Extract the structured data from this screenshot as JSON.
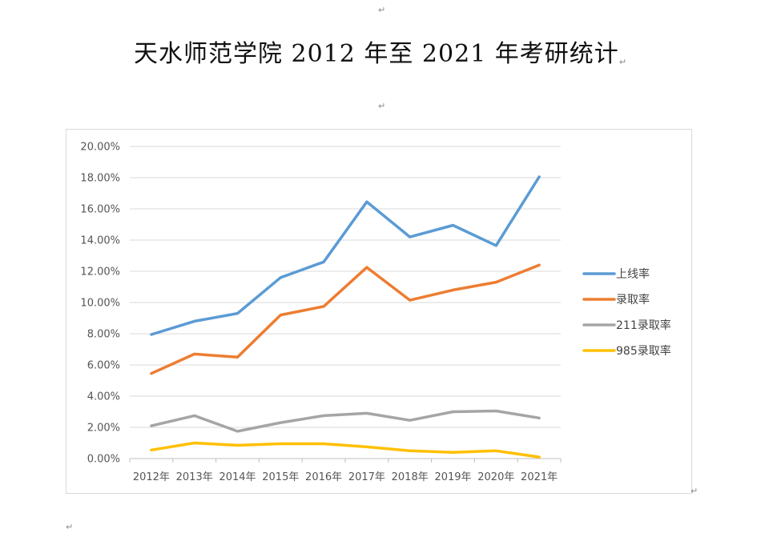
{
  "document": {
    "title": "天水师范学院 2012 年至 2021 年考研统计",
    "paragraph_mark": "↵"
  },
  "chart_data": {
    "type": "line",
    "title": "",
    "xlabel": "",
    "ylabel": "",
    "categories": [
      "2012年",
      "2013年",
      "2014年",
      "2015年",
      "2016年",
      "2017年",
      "2018年",
      "2019年",
      "2020年",
      "2021年"
    ],
    "ylim": [
      0,
      20
    ],
    "y_ticks": [
      "0.00%",
      "2.00%",
      "4.00%",
      "6.00%",
      "8.00%",
      "10.00%",
      "12.00%",
      "14.00%",
      "16.00%",
      "18.00%",
      "20.00%"
    ],
    "y_unit": "%",
    "grid": true,
    "legend_position": "right",
    "series": [
      {
        "name": "上线率",
        "color": "#5b9bd5",
        "values": [
          7.95,
          8.8,
          9.3,
          11.6,
          12.6,
          16.45,
          14.2,
          14.95,
          13.65,
          18.05
        ]
      },
      {
        "name": "录取率",
        "color": "#ed7d31",
        "values": [
          5.45,
          6.7,
          6.5,
          9.2,
          9.75,
          12.25,
          10.15,
          10.8,
          11.3,
          12.4
        ]
      },
      {
        "name": "211录取率",
        "color": "#a5a5a5",
        "values": [
          2.1,
          2.75,
          1.75,
          2.3,
          2.75,
          2.9,
          2.45,
          3.0,
          3.05,
          2.6
        ]
      },
      {
        "name": "985录取率",
        "color": "#ffc000",
        "values": [
          0.55,
          1.0,
          0.85,
          0.95,
          0.95,
          0.75,
          0.5,
          0.4,
          0.5,
          0.1
        ]
      }
    ]
  }
}
